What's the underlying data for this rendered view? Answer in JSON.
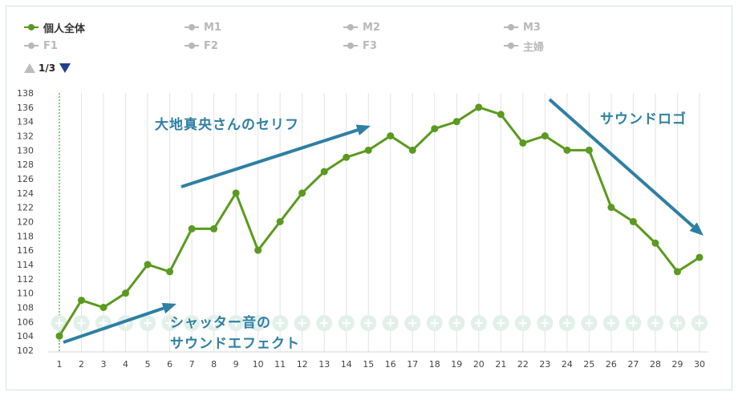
{
  "legend": {
    "items": [
      {
        "label": "個人全体",
        "active": true
      },
      {
        "label": "M1",
        "active": false
      },
      {
        "label": "M2",
        "active": false
      },
      {
        "label": "M3",
        "active": false
      },
      {
        "label": "F1",
        "active": false
      },
      {
        "label": "F2",
        "active": false
      },
      {
        "label": "F3",
        "active": false
      },
      {
        "label": "主婦",
        "active": false
      }
    ]
  },
  "pager": {
    "text": "1/3"
  },
  "annotations": {
    "a1": "大地真央さんのセリフ",
    "a2": "サウンドロゴ",
    "a3_line1": "シャッター音の",
    "a3_line2": "サウンドエフェクト"
  },
  "colors": {
    "series": "#5a9a1e",
    "inactive": "#b8b8b8",
    "arrow": "#2e7fa4",
    "grid": "#e3e3e3",
    "marker_vline": "#3aa63a",
    "plus_circle": "#e2f0ea"
  },
  "chart_data": {
    "type": "line",
    "x": [
      1,
      2,
      3,
      4,
      5,
      6,
      7,
      8,
      9,
      10,
      11,
      12,
      13,
      14,
      15,
      16,
      17,
      18,
      19,
      20,
      21,
      22,
      23,
      24,
      25,
      26,
      27,
      28,
      29,
      30
    ],
    "series": [
      {
        "name": "個人全体",
        "values": [
          104,
          109,
          108,
          110,
          114,
          113,
          119,
          119,
          124,
          116,
          120,
          124,
          127,
          129,
          130,
          132,
          130,
          133,
          134,
          136,
          135,
          131,
          132,
          130,
          130,
          122,
          120,
          117,
          113,
          115
        ]
      }
    ],
    "yticks": [
      102,
      104,
      106,
      108,
      110,
      112,
      114,
      116,
      118,
      120,
      122,
      124,
      126,
      128,
      130,
      132,
      134,
      136,
      138
    ],
    "ylim": [
      102,
      138
    ],
    "xlabel": "",
    "ylabel": "",
    "grid": "vertical"
  }
}
